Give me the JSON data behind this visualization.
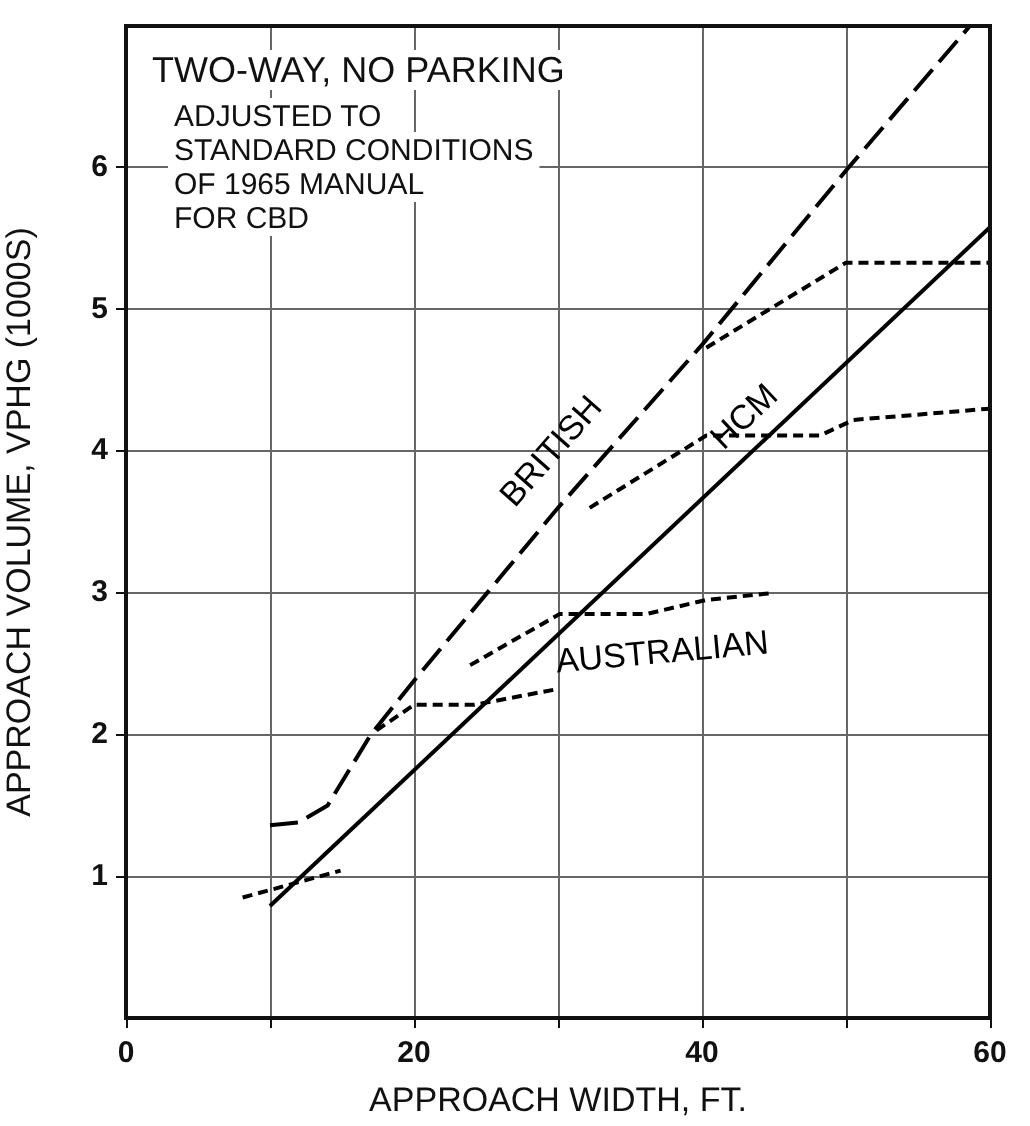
{
  "chart_data": {
    "type": "line",
    "title": "TWO-WAY, NO PARKING",
    "annotations": [
      "ADJUSTED TO\nSTANDARD CONDITIONS\nOF 1965 MANUAL\nFOR CBD"
    ],
    "xlabel": "APPROACH WIDTH, FT.",
    "ylabel": "APPROACH VOLUME, VPHG (1000S)",
    "xlim": [
      0,
      60
    ],
    "ylim": [
      0,
      7
    ],
    "xticks": [
      0,
      {
        "value": 10,
        "label": null
      },
      20,
      {
        "value": 30,
        "label": null
      },
      40,
      {
        "value": 50,
        "label": null
      },
      60
    ],
    "yticks": [
      1,
      2,
      3,
      4,
      5,
      6
    ],
    "grid": true,
    "legend": false,
    "marker": "none",
    "series": [
      {
        "name": "BRITISH",
        "color": "#000000",
        "line_style": "dashed",
        "x": [
          10,
          12,
          14,
          15.5,
          17,
          20,
          30,
          40,
          50,
          58.6
        ],
        "values": [
          1.36,
          1.38,
          1.5,
          1.75,
          2.0,
          2.38,
          3.6,
          4.75,
          5.98,
          7.0
        ]
      },
      {
        "name": "HCM",
        "color": "#000000",
        "line_style": "solid",
        "x": [
          10,
          60
        ],
        "values": [
          0.79,
          5.58
        ]
      },
      {
        "name": "AUSTRALIAN",
        "color": "#000000",
        "line_style": "dotted",
        "x": [
          23.9,
          30.1,
          36.1,
          40.3,
          45
        ],
        "values": [
          2.49,
          2.85,
          2.85,
          2.95,
          3.0
        ]
      },
      {
        "color": "#000000",
        "line_style": "dotted",
        "x": [
          8.1,
          14.9
        ],
        "values": [
          0.85,
          1.04
        ]
      },
      {
        "color": "#000000",
        "line_style": "dotted",
        "x": [
          17.4,
          20,
          24.2,
          29.9
        ],
        "values": [
          2.03,
          2.21,
          2.21,
          2.32
        ]
      },
      {
        "color": "#000000",
        "line_style": "dotted",
        "x": [
          32.2,
          40.3,
          48.2,
          50.5,
          60
        ],
        "values": [
          3.6,
          4.11,
          4.11,
          4.22,
          4.3
        ]
      },
      {
        "color": "#000000",
        "line_style": "dotted",
        "x": [
          40.3,
          50,
          60
        ],
        "values": [
          4.73,
          5.33,
          5.33
        ]
      }
    ]
  }
}
